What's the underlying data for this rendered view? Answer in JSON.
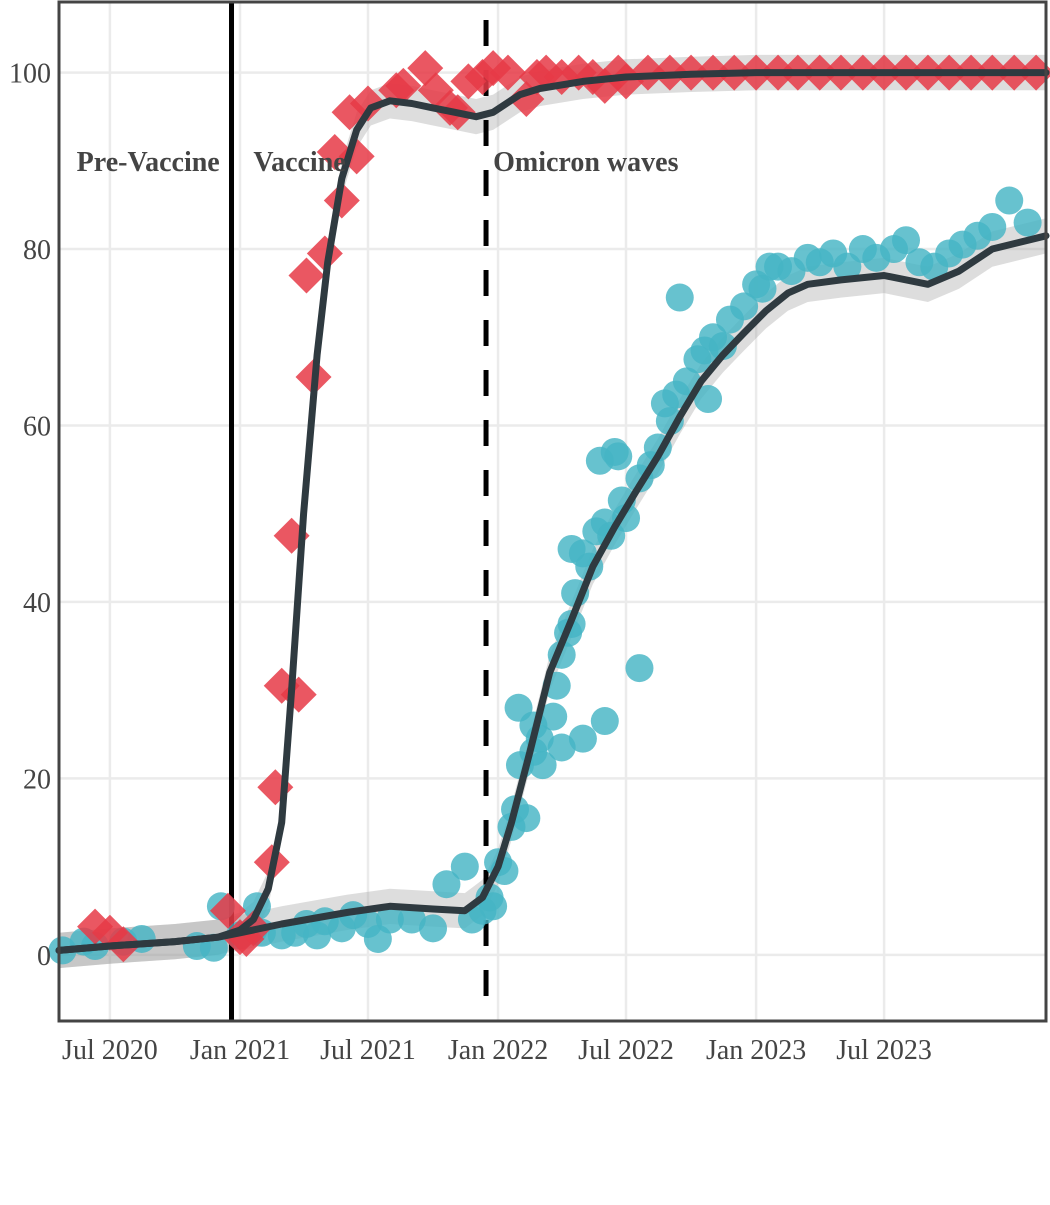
{
  "chart_data": {
    "type": "scatter",
    "title": "",
    "xlabel": "",
    "ylabel": "",
    "grid": true,
    "legend": "none",
    "x_axis": {
      "type": "date",
      "range": [
        "2020-04-20",
        "2024-02-15"
      ],
      "ticks": [
        {
          "date": "2020-07-01",
          "label": "Jul 2020"
        },
        {
          "date": "2021-01-01",
          "label": "Jan 2021"
        },
        {
          "date": "2021-07-01",
          "label": "Jul 2021"
        },
        {
          "date": "2022-01-01",
          "label": "Jan 2022"
        },
        {
          "date": "2022-07-01",
          "label": "Jul 2022"
        },
        {
          "date": "2023-01-01",
          "label": "Jan 2023"
        },
        {
          "date": "2023-07-01",
          "label": "Jul 2023"
        }
      ]
    },
    "y_axis": {
      "range": [
        -7.5,
        108
      ],
      "ticks": [
        0,
        20,
        40,
        60,
        80,
        100
      ]
    },
    "phase_lines": [
      {
        "date": "2020-12-20",
        "style": "solid"
      },
      {
        "date": "2021-12-15",
        "style": "dashed"
      }
    ],
    "phase_labels": [
      {
        "text": "Pre-Vaccine",
        "date": "2020-05-15",
        "y": 90
      },
      {
        "text": "Vaccine",
        "date": "2021-01-20",
        "y": 90
      },
      {
        "text": "Omicron waves",
        "date": "2021-12-25",
        "y": 90
      }
    ],
    "series": [
      {
        "marker": "diamond",
        "color": "#e63946",
        "points": [
          [
            "2020-06-10",
            3.2
          ],
          [
            "2020-07-01",
            2.5
          ],
          [
            "2020-07-20",
            1.2
          ],
          [
            "2020-12-15",
            5.0
          ],
          [
            "2021-01-01",
            2.0
          ],
          [
            "2021-01-10",
            1.8
          ],
          [
            "2021-01-20",
            3.0
          ],
          [
            "2021-02-15",
            10.5
          ],
          [
            "2021-02-20",
            19.0
          ],
          [
            "2021-03-01",
            30.5
          ],
          [
            "2021-03-25",
            29.5
          ],
          [
            "2021-03-15",
            47.5
          ],
          [
            "2021-04-15",
            65.5
          ],
          [
            "2021-04-05",
            77.0
          ],
          [
            "2021-05-01",
            79.5
          ],
          [
            "2021-05-25",
            85.5
          ],
          [
            "2021-05-15",
            91.0
          ],
          [
            "2021-06-05",
            95.5
          ],
          [
            "2021-06-15",
            90.5
          ],
          [
            "2021-07-01",
            96.5
          ],
          [
            "2021-08-10",
            98.0
          ],
          [
            "2021-08-20",
            98.5
          ],
          [
            "2021-09-20",
            100.5
          ],
          [
            "2021-10-05",
            98.0
          ],
          [
            "2021-10-25",
            96.0
          ],
          [
            "2021-11-05",
            95.5
          ],
          [
            "2021-11-20",
            99.0
          ],
          [
            "2021-12-10",
            99.5
          ],
          [
            "2021-12-25",
            100.5
          ],
          [
            "2022-01-15",
            100.0
          ],
          [
            "2022-02-10",
            97.0
          ],
          [
            "2022-02-25",
            99.5
          ],
          [
            "2022-03-10",
            100.0
          ],
          [
            "2022-04-01",
            99.5
          ],
          [
            "2022-04-25",
            100.0
          ],
          [
            "2022-05-15",
            99.5
          ],
          [
            "2022-06-01",
            98.5
          ],
          [
            "2022-06-20",
            100.0
          ],
          [
            "2022-07-01",
            99.0
          ],
          [
            "2022-08-01",
            100.0
          ],
          [
            "2022-09-01",
            100.0
          ],
          [
            "2022-10-01",
            100.0
          ],
          [
            "2022-11-01",
            100.0
          ],
          [
            "2022-12-01",
            100.0
          ],
          [
            "2023-01-01",
            100.0
          ],
          [
            "2023-02-01",
            100.0
          ],
          [
            "2023-03-01",
            100.0
          ],
          [
            "2023-04-01",
            100.0
          ],
          [
            "2023-05-01",
            100.0
          ],
          [
            "2023-06-01",
            100.0
          ],
          [
            "2023-07-01",
            100.0
          ],
          [
            "2023-08-01",
            100.0
          ],
          [
            "2023-09-01",
            100.0
          ],
          [
            "2023-10-01",
            100.0
          ],
          [
            "2023-11-01",
            100.0
          ],
          [
            "2023-12-01",
            100.0
          ],
          [
            "2024-01-01",
            100.0
          ],
          [
            "2024-02-01",
            100.0
          ]
        ],
        "trend": [
          [
            "2020-04-20",
            0.5
          ],
          [
            "2020-07-01",
            1.0
          ],
          [
            "2020-10-01",
            1.5
          ],
          [
            "2020-12-01",
            2.0
          ],
          [
            "2021-01-01",
            2.8
          ],
          [
            "2021-01-20",
            4.0
          ],
          [
            "2021-02-10",
            7.5
          ],
          [
            "2021-03-01",
            15.0
          ],
          [
            "2021-03-15",
            30.0
          ],
          [
            "2021-04-01",
            50.0
          ],
          [
            "2021-04-20",
            68.0
          ],
          [
            "2021-05-05",
            78.5
          ],
          [
            "2021-05-25",
            88.0
          ],
          [
            "2021-06-15",
            93.5
          ],
          [
            "2021-07-05",
            96.0
          ],
          [
            "2021-08-01",
            96.8
          ],
          [
            "2021-09-01",
            96.5
          ],
          [
            "2021-10-01",
            96.0
          ],
          [
            "2021-11-01",
            95.5
          ],
          [
            "2021-12-01",
            95.0
          ],
          [
            "2021-12-25",
            95.5
          ],
          [
            "2022-02-01",
            97.5
          ],
          [
            "2022-03-01",
            98.2
          ],
          [
            "2022-05-01",
            99.0
          ],
          [
            "2022-07-01",
            99.5
          ],
          [
            "2022-10-01",
            99.8
          ],
          [
            "2023-01-01",
            100.0
          ],
          [
            "2024-02-15",
            100.0
          ]
        ]
      },
      {
        "marker": "circle",
        "color": "#45b5c4",
        "points": [
          [
            "2020-04-25",
            0.5
          ],
          [
            "2020-05-25",
            1.5
          ],
          [
            "2020-06-10",
            1.0
          ],
          [
            "2020-07-20",
            1.5
          ],
          [
            "2020-08-15",
            1.8
          ],
          [
            "2020-11-01",
            1.0
          ],
          [
            "2020-11-25",
            0.8
          ],
          [
            "2020-12-05",
            5.5
          ],
          [
            "2021-01-01",
            2.2
          ],
          [
            "2021-01-20",
            2.8
          ],
          [
            "2021-01-25",
            5.5
          ],
          [
            "2021-02-01",
            2.5
          ],
          [
            "2021-03-01",
            2.2
          ],
          [
            "2021-03-20",
            2.5
          ],
          [
            "2021-04-05",
            3.5
          ],
          [
            "2021-04-20",
            2.2
          ],
          [
            "2021-05-01",
            3.8
          ],
          [
            "2021-05-25",
            3.0
          ],
          [
            "2021-06-10",
            4.5
          ],
          [
            "2021-07-01",
            3.5
          ],
          [
            "2021-07-15",
            1.8
          ],
          [
            "2021-08-01",
            4.0
          ],
          [
            "2021-09-01",
            4.0
          ],
          [
            "2021-10-01",
            3.0
          ],
          [
            "2021-10-20",
            8.0
          ],
          [
            "2021-11-15",
            10.0
          ],
          [
            "2021-11-25",
            4.0
          ],
          [
            "2021-12-10",
            5.0
          ],
          [
            "2021-12-20",
            6.5
          ],
          [
            "2021-12-25",
            5.5
          ],
          [
            "2022-01-01",
            10.5
          ],
          [
            "2022-01-10",
            9.5
          ],
          [
            "2022-01-20",
            14.5
          ],
          [
            "2022-01-25",
            16.5
          ],
          [
            "2022-01-30",
            28.0
          ],
          [
            "2022-02-01",
            21.5
          ],
          [
            "2022-02-10",
            15.5
          ],
          [
            "2022-02-20",
            26.0
          ],
          [
            "2022-02-20",
            23.0
          ],
          [
            "2022-03-01",
            24.5
          ],
          [
            "2022-03-05",
            21.5
          ],
          [
            "2022-03-20",
            27.0
          ],
          [
            "2022-03-25",
            30.5
          ],
          [
            "2022-04-01",
            34.0
          ],
          [
            "2022-04-01",
            23.5
          ],
          [
            "2022-04-10",
            36.5
          ],
          [
            "2022-04-15",
            37.5
          ],
          [
            "2022-04-15",
            46.0
          ],
          [
            "2022-04-20",
            41.0
          ],
          [
            "2022-05-01",
            45.5
          ],
          [
            "2022-05-01",
            24.5
          ],
          [
            "2022-05-10",
            44.0
          ],
          [
            "2022-05-20",
            48.0
          ],
          [
            "2022-05-25",
            56.0
          ],
          [
            "2022-06-01",
            49.0
          ],
          [
            "2022-06-01",
            26.5
          ],
          [
            "2022-06-10",
            47.5
          ],
          [
            "2022-06-15",
            57.0
          ],
          [
            "2022-06-20",
            56.5
          ],
          [
            "2022-06-25",
            51.5
          ],
          [
            "2022-07-01",
            49.5
          ],
          [
            "2022-07-20",
            32.5
          ],
          [
            "2022-07-20",
            54.0
          ],
          [
            "2022-08-05",
            55.5
          ],
          [
            "2022-08-15",
            57.5
          ],
          [
            "2022-08-25",
            62.5
          ],
          [
            "2022-09-01",
            60.5
          ],
          [
            "2022-09-10",
            63.5
          ],
          [
            "2022-09-15",
            74.5
          ],
          [
            "2022-09-25",
            65.0
          ],
          [
            "2022-10-10",
            67.5
          ],
          [
            "2022-10-20",
            68.5
          ],
          [
            "2022-10-25",
            63.0
          ],
          [
            "2022-11-01",
            70.0
          ],
          [
            "2022-11-15",
            69.0
          ],
          [
            "2022-11-25",
            72.0
          ],
          [
            "2022-12-15",
            73.5
          ],
          [
            "2023-01-01",
            76.0
          ],
          [
            "2023-01-10",
            75.5
          ],
          [
            "2023-01-20",
            78.0
          ],
          [
            "2023-02-01",
            78.0
          ],
          [
            "2023-02-20",
            77.5
          ],
          [
            "2023-03-15",
            79.0
          ],
          [
            "2023-04-01",
            78.5
          ],
          [
            "2023-04-20",
            79.5
          ],
          [
            "2023-05-10",
            78.0
          ],
          [
            "2023-06-01",
            80.0
          ],
          [
            "2023-06-20",
            79.0
          ],
          [
            "2023-07-15",
            80.0
          ],
          [
            "2023-08-01",
            81.0
          ],
          [
            "2023-08-20",
            78.5
          ],
          [
            "2023-09-10",
            78.0
          ],
          [
            "2023-10-01",
            79.5
          ],
          [
            "2023-10-20",
            80.5
          ],
          [
            "2023-11-10",
            81.5
          ],
          [
            "2023-12-01",
            82.5
          ],
          [
            "2023-12-25",
            85.5
          ],
          [
            "2024-01-20",
            83.0
          ]
        ],
        "trend": [
          [
            "2020-04-20",
            0.5
          ],
          [
            "2020-07-01",
            1.0
          ],
          [
            "2020-10-01",
            1.5
          ],
          [
            "2020-12-01",
            2.0
          ],
          [
            "2021-01-01",
            2.5
          ],
          [
            "2021-03-01",
            3.5
          ],
          [
            "2021-06-01",
            4.8
          ],
          [
            "2021-08-01",
            5.5
          ],
          [
            "2021-10-01",
            5.2
          ],
          [
            "2021-11-15",
            5.0
          ],
          [
            "2021-12-10",
            6.5
          ],
          [
            "2022-01-01",
            10.0
          ],
          [
            "2022-01-20",
            15.0
          ],
          [
            "2022-02-15",
            23.0
          ],
          [
            "2022-03-15",
            32.0
          ],
          [
            "2022-04-15",
            38.0
          ],
          [
            "2022-05-15",
            44.0
          ],
          [
            "2022-06-15",
            48.5
          ],
          [
            "2022-07-15",
            52.5
          ],
          [
            "2022-08-15",
            56.5
          ],
          [
            "2022-09-15",
            61.0
          ],
          [
            "2022-10-15",
            65.0
          ],
          [
            "2022-11-15",
            68.0
          ],
          [
            "2022-12-15",
            70.5
          ],
          [
            "2023-01-15",
            73.0
          ],
          [
            "2023-02-15",
            75.0
          ],
          [
            "2023-03-15",
            76.0
          ],
          [
            "2023-05-01",
            76.5
          ],
          [
            "2023-07-01",
            77.0
          ],
          [
            "2023-09-01",
            76.0
          ],
          [
            "2023-10-15",
            77.5
          ],
          [
            "2023-12-01",
            80.0
          ],
          [
            "2024-02-15",
            81.5
          ]
        ]
      }
    ]
  }
}
